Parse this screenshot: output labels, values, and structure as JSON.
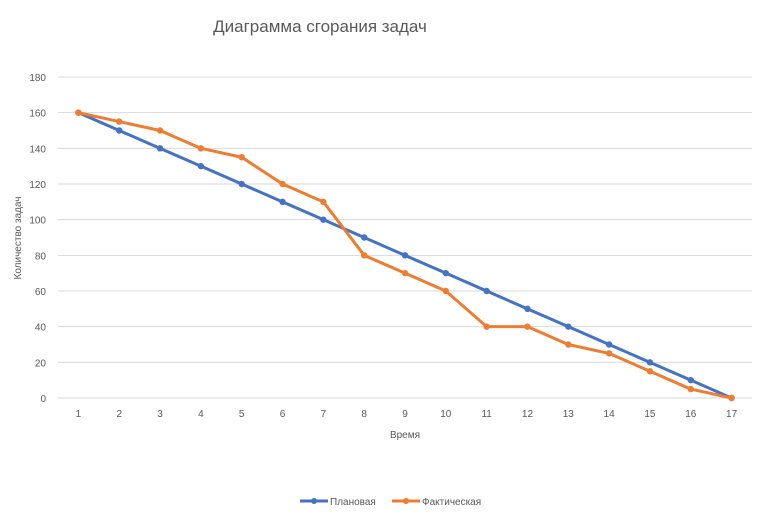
{
  "chart_data": {
    "type": "line",
    "title": "Диаграмма сгорания задач",
    "xlabel": "Время",
    "ylabel": "Количество задач",
    "x": [
      1,
      2,
      3,
      4,
      5,
      6,
      7,
      8,
      9,
      10,
      11,
      12,
      13,
      14,
      15,
      16,
      17
    ],
    "ylim": [
      0,
      180
    ],
    "yticks": [
      0,
      20,
      40,
      60,
      80,
      100,
      120,
      140,
      160,
      180
    ],
    "grid": true,
    "legend_position": "bottom",
    "series": [
      {
        "name": "Плановая",
        "color": "#4472C4",
        "values": [
          160,
          150,
          140,
          130,
          120,
          110,
          100,
          90,
          80,
          70,
          60,
          50,
          40,
          30,
          20,
          10,
          0
        ]
      },
      {
        "name": "Фактическая",
        "color": "#ED7D31",
        "values": [
          160,
          155,
          150,
          140,
          135,
          120,
          110,
          80,
          70,
          60,
          40,
          40,
          30,
          25,
          15,
          5,
          0
        ]
      }
    ]
  }
}
